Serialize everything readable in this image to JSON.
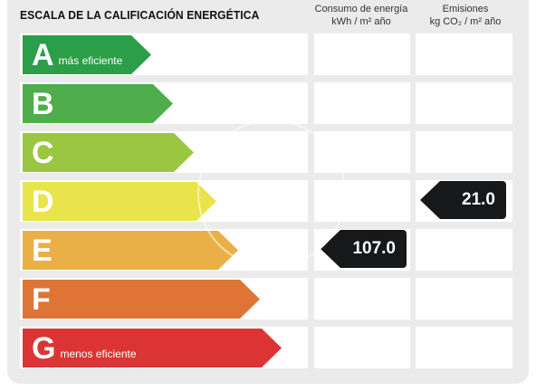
{
  "header": {
    "title": "ESCALA DE LA CALIFICACIÓN ENERGÉTICA",
    "energy_line1": "Consumo de energía",
    "energy_line2": "kWh / m² año",
    "emissions_line1": "Emisiones",
    "emissions_line2": "kg CO₂ / m² año"
  },
  "ratings": [
    {
      "letter": "A",
      "text": "más eficiente",
      "color": "#2c9d48"
    },
    {
      "letter": "B",
      "text": "",
      "color": "#4fae4b"
    },
    {
      "letter": "C",
      "text": "",
      "color": "#9ac642"
    },
    {
      "letter": "D",
      "text": "",
      "color": "#e9e44b"
    },
    {
      "letter": "E",
      "text": "",
      "color": "#eab047"
    },
    {
      "letter": "F",
      "text": "",
      "color": "#de7537"
    },
    {
      "letter": "G",
      "text": "menos eficiente",
      "color": "#dc3434"
    }
  ],
  "energy_value": "107.0",
  "energy_rating": "E",
  "emissions_value": "21.0",
  "emissions_rating": "D"
}
